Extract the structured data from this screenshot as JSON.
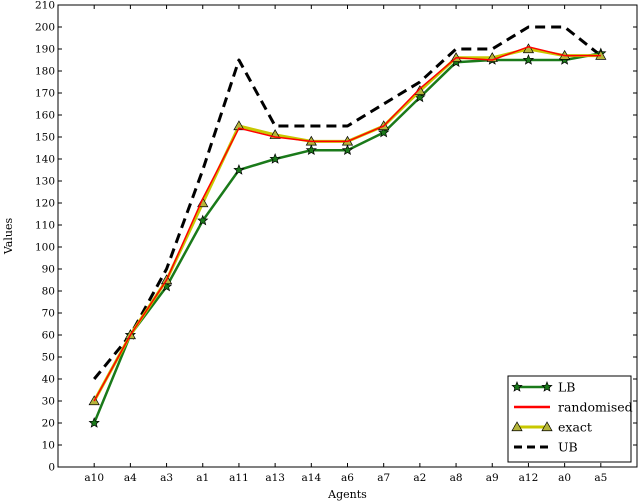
{
  "chart_data": {
    "type": "line",
    "xlabel": "Agents",
    "ylabel": "Values",
    "categories": [
      "a10",
      "a4",
      "a3",
      "a1",
      "a11",
      "a13",
      "a14",
      "a6",
      "a7",
      "a2",
      "a8",
      "a9",
      "a12",
      "a0",
      "a5"
    ],
    "ylim": [
      0,
      210
    ],
    "yticks": [
      0,
      10,
      20,
      30,
      40,
      50,
      60,
      70,
      80,
      90,
      100,
      110,
      120,
      130,
      140,
      150,
      160,
      170,
      180,
      190,
      200,
      210
    ],
    "grid": false,
    "legend_position": "bottom-right",
    "series": [
      {
        "name": "LB",
        "color": "#1a7a1a",
        "style": "solid",
        "marker": "star",
        "values": [
          20,
          60,
          82,
          112,
          135,
          140,
          144,
          144,
          152,
          168,
          184,
          185,
          185,
          185,
          188
        ]
      },
      {
        "name": "randomised",
        "color": "#ff0000",
        "style": "solid",
        "marker": "none",
        "values": [
          30,
          60,
          85,
          122,
          154,
          150,
          148,
          148,
          155,
          172,
          186,
          185,
          191,
          187,
          187
        ]
      },
      {
        "name": "exact",
        "color": "#c8c800",
        "style": "solid",
        "marker": "triangle",
        "values": [
          30,
          60,
          85,
          120,
          155,
          151,
          148,
          148,
          155,
          171,
          186,
          186,
          190,
          187,
          187
        ]
      },
      {
        "name": "UB",
        "color": "#000000",
        "style": "dashed",
        "marker": "none",
        "values": [
          40,
          60,
          90,
          135,
          185,
          155,
          155,
          155,
          165,
          175,
          190,
          190,
          200,
          200,
          187
        ]
      }
    ]
  }
}
